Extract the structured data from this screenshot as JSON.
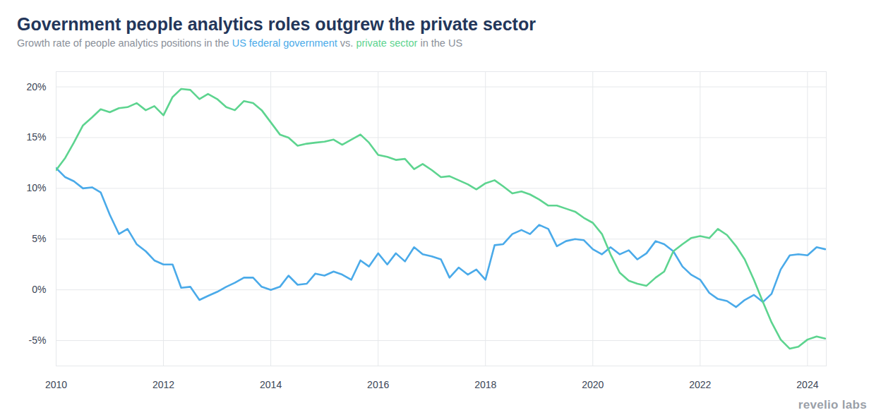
{
  "chart_data": {
    "type": "line",
    "title": "Government people analytics roles outgrew the private sector",
    "subtitle": "Growth rate of people analytics positions in the US federal government vs. private sector in the US",
    "source": "revelio labs",
    "x": [
      2010,
      2010.17,
      2010.33,
      2010.5,
      2010.67,
      2010.83,
      2011,
      2011.17,
      2011.33,
      2011.5,
      2011.67,
      2011.83,
      2012,
      2012.17,
      2012.33,
      2012.5,
      2012.67,
      2012.83,
      2013,
      2013.17,
      2013.33,
      2013.5,
      2013.67,
      2013.83,
      2014,
      2014.17,
      2014.33,
      2014.5,
      2014.67,
      2014.83,
      2015,
      2015.17,
      2015.33,
      2015.5,
      2015.67,
      2015.83,
      2016,
      2016.17,
      2016.33,
      2016.5,
      2016.67,
      2016.83,
      2017,
      2017.17,
      2017.33,
      2017.5,
      2017.67,
      2017.83,
      2018,
      2018.17,
      2018.33,
      2018.5,
      2018.67,
      2018.83,
      2019,
      2019.17,
      2019.33,
      2019.5,
      2019.67,
      2019.83,
      2020,
      2020.17,
      2020.33,
      2020.5,
      2020.67,
      2020.83,
      2021,
      2021.17,
      2021.33,
      2021.5,
      2021.67,
      2021.83,
      2022,
      2022.17,
      2022.33,
      2022.5,
      2022.67,
      2022.83,
      2023,
      2023.17,
      2023.33,
      2023.5,
      2023.67,
      2023.83,
      2024,
      2024.17,
      2024.33
    ],
    "series": [
      {
        "name": "US federal government",
        "color": "#4aaae9",
        "values": [
          12.0,
          11.1,
          10.7,
          10.0,
          10.1,
          9.6,
          7.4,
          5.5,
          6.0,
          4.5,
          3.8,
          2.9,
          2.5,
          2.5,
          0.2,
          0.3,
          -1.0,
          -0.6,
          -0.2,
          0.3,
          0.7,
          1.2,
          1.2,
          0.3,
          0.0,
          0.3,
          1.4,
          0.5,
          0.6,
          1.6,
          1.4,
          1.8,
          1.5,
          1.0,
          2.9,
          2.3,
          3.6,
          2.5,
          3.6,
          2.8,
          4.2,
          3.5,
          3.3,
          3.0,
          1.2,
          2.2,
          1.5,
          2.0,
          1.0,
          4.4,
          4.5,
          5.5,
          5.9,
          5.5,
          6.4,
          6.0,
          4.3,
          4.8,
          5.0,
          4.9,
          4.0,
          3.5,
          4.2,
          3.5,
          3.9,
          3.0,
          3.6,
          4.8,
          4.5,
          3.8,
          2.3,
          1.5,
          1.0,
          -0.3,
          -0.9,
          -1.1,
          -1.7,
          -1.0,
          -0.5,
          -1.2,
          -0.4,
          2.0,
          3.4,
          3.5,
          3.4,
          4.2,
          4.0
        ]
      },
      {
        "name": "private sector",
        "color": "#5dd48f",
        "values": [
          11.8,
          13.0,
          14.5,
          16.2,
          17.0,
          17.8,
          17.5,
          17.9,
          18.0,
          18.4,
          17.7,
          18.1,
          17.2,
          19.0,
          19.8,
          19.7,
          18.8,
          19.3,
          18.8,
          18.0,
          17.7,
          18.6,
          18.4,
          17.7,
          16.5,
          15.3,
          15.0,
          14.2,
          14.4,
          14.5,
          14.6,
          14.8,
          14.3,
          14.8,
          15.3,
          14.5,
          13.3,
          13.1,
          12.8,
          12.9,
          11.9,
          12.4,
          11.8,
          11.1,
          11.2,
          10.8,
          10.4,
          9.9,
          10.5,
          10.8,
          10.2,
          9.5,
          9.7,
          9.4,
          8.9,
          8.3,
          8.3,
          8.0,
          7.7,
          7.1,
          6.6,
          5.5,
          3.5,
          1.7,
          0.9,
          0.6,
          0.4,
          1.2,
          1.8,
          3.8,
          4.5,
          5.1,
          5.3,
          5.1,
          6.0,
          5.4,
          4.3,
          3.0,
          1.0,
          -1.2,
          -3.2,
          -4.9,
          -5.8,
          -5.6,
          -4.9,
          -4.6,
          -4.8
        ]
      }
    ],
    "xlim": [
      2010,
      2024.35
    ],
    "xticks": [
      2010,
      2012,
      2014,
      2016,
      2018,
      2020,
      2022,
      2024
    ],
    "ylim": [
      -7.5,
      21.5
    ],
    "yticks": [
      {
        "value": -5,
        "label": "-5%"
      },
      {
        "value": 0,
        "label": "0%"
      },
      {
        "value": 5,
        "label": "5%"
      },
      {
        "value": 10,
        "label": "10%"
      },
      {
        "value": 15,
        "label": "15%"
      },
      {
        "value": 20,
        "label": "20%"
      }
    ],
    "grid": true
  }
}
